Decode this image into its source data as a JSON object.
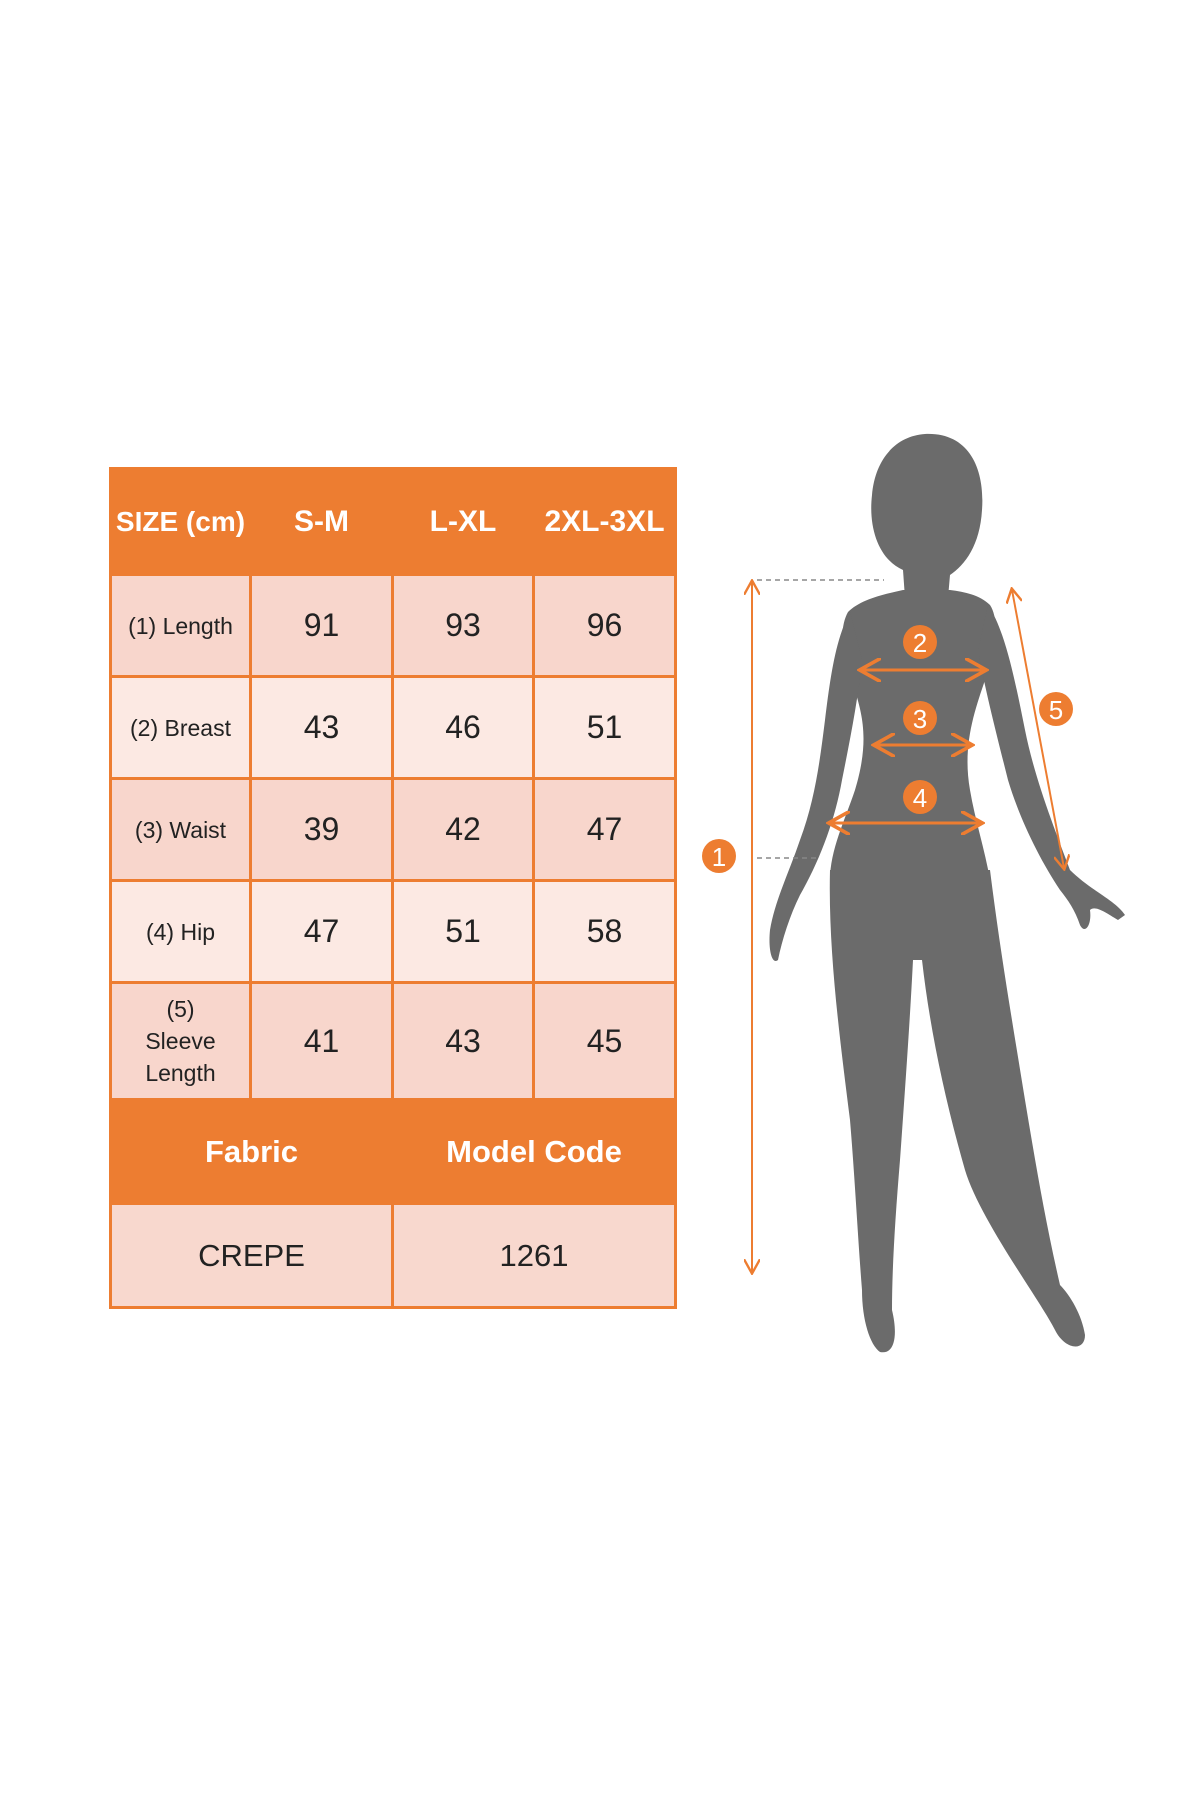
{
  "table": {
    "header": {
      "label": "SIZE (cm)",
      "sizes": [
        "S-M",
        "L-XL",
        "2XL-3XL"
      ]
    },
    "rows": [
      {
        "label": "(1) Length",
        "values": [
          "91",
          "93",
          "96"
        ]
      },
      {
        "label": "(2) Breast",
        "values": [
          "43",
          "46",
          "51"
        ]
      },
      {
        "label": "(3) Waist",
        "values": [
          "39",
          "42",
          "47"
        ]
      },
      {
        "label": "(4) Hip",
        "values": [
          "47",
          "51",
          "58"
        ]
      },
      {
        "label": "(5) Sleeve Length",
        "values": [
          "41",
          "43",
          "45"
        ]
      }
    ],
    "footer": {
      "fabric_label": "Fabric",
      "model_code_label": "Model Code",
      "fabric": "CREPE",
      "model_code": "1261"
    }
  },
  "figure": {
    "markers": [
      "1",
      "2",
      "3",
      "4",
      "5"
    ],
    "accent_color": "#ed7d31",
    "silhouette_color": "#6b6b6b"
  }
}
